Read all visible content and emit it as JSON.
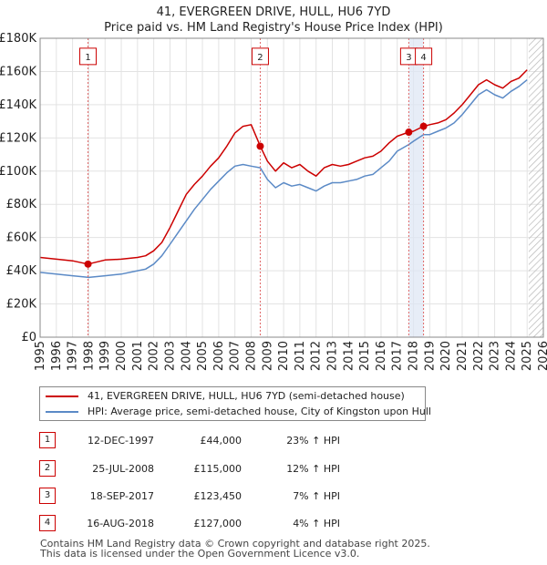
{
  "chart_data": {
    "type": "line",
    "title": "41, EVERGREEN DRIVE, HULL, HU6 7YD",
    "subtitle": "Price paid vs. HM Land Registry's House Price Index (HPI)",
    "xlabel": "",
    "ylabel": "",
    "xlim": [
      1995,
      2026
    ],
    "ylim": [
      0,
      180000
    ],
    "x_ticks": [
      "1995",
      "1996",
      "1997",
      "1998",
      "1999",
      "2000",
      "2001",
      "2002",
      "2003",
      "2004",
      "2005",
      "2006",
      "2007",
      "2008",
      "2009",
      "2010",
      "2011",
      "2012",
      "2013",
      "2014",
      "2015",
      "2016",
      "2017",
      "2018",
      "2019",
      "2020",
      "2021",
      "2022",
      "2023",
      "2024",
      "2025",
      "2026"
    ],
    "y_ticks": [
      {
        "value": 0,
        "label": "£0"
      },
      {
        "value": 20000,
        "label": "£20K"
      },
      {
        "value": 40000,
        "label": "£40K"
      },
      {
        "value": 60000,
        "label": "£60K"
      },
      {
        "value": 80000,
        "label": "£80K"
      },
      {
        "value": 100000,
        "label": "£100K"
      },
      {
        "value": 120000,
        "label": "£120K"
      },
      {
        "value": 140000,
        "label": "£140K"
      },
      {
        "value": 160000,
        "label": "£160K"
      },
      {
        "value": 180000,
        "label": "£180K"
      }
    ],
    "grid": true,
    "forecast_start": 2025.1,
    "series": [
      {
        "name": "41, EVERGREEN DRIVE, HULL, HU6 7YD (semi-detached house)",
        "color": "#cc0000",
        "x": [
          1995.0,
          1996.0,
          1997.0,
          1997.95,
          1999.0,
          2000.0,
          2001.0,
          2001.5,
          2002.0,
          2002.5,
          2003.0,
          2003.5,
          2004.0,
          2004.5,
          2005.0,
          2005.5,
          2006.0,
          2006.5,
          2007.0,
          2007.5,
          2008.0,
          2008.56,
          2009.0,
          2009.5,
          2010.0,
          2010.5,
          2011.0,
          2011.5,
          2012.0,
          2012.5,
          2013.0,
          2013.5,
          2014.0,
          2014.5,
          2015.0,
          2015.5,
          2016.0,
          2016.5,
          2017.0,
          2017.71,
          2018.0,
          2018.62,
          2019.0,
          2019.5,
          2020.0,
          2020.5,
          2021.0,
          2021.5,
          2022.0,
          2022.5,
          2023.0,
          2023.5,
          2024.0,
          2024.5,
          2025.0
        ],
        "y": [
          48000,
          47000,
          46000,
          44000,
          46500,
          47000,
          48000,
          49000,
          52000,
          57000,
          66000,
          76000,
          86000,
          92000,
          97000,
          103000,
          108000,
          115000,
          123000,
          127000,
          128000,
          115000,
          106000,
          100000,
          105000,
          102000,
          104000,
          100000,
          97000,
          102000,
          104000,
          103000,
          104000,
          106000,
          108000,
          109000,
          112000,
          117000,
          121000,
          123450,
          124000,
          127000,
          128000,
          129000,
          131000,
          135000,
          140000,
          146000,
          152000,
          155000,
          152000,
          150000,
          154000,
          156000,
          161000
        ]
      },
      {
        "name": "HPI: Average price, semi-detached house, City of Kingston upon Hull",
        "color": "#5b8ac6",
        "x": [
          1995.0,
          1996.0,
          1997.0,
          1998.0,
          1999.0,
          2000.0,
          2001.0,
          2001.5,
          2002.0,
          2002.5,
          2003.0,
          2003.5,
          2004.0,
          2004.5,
          2005.0,
          2005.5,
          2006.0,
          2006.5,
          2007.0,
          2007.5,
          2008.0,
          2008.56,
          2009.0,
          2009.5,
          2010.0,
          2010.5,
          2011.0,
          2011.5,
          2012.0,
          2012.5,
          2013.0,
          2013.5,
          2014.0,
          2014.5,
          2015.0,
          2015.5,
          2016.0,
          2016.5,
          2017.0,
          2017.71,
          2018.0,
          2018.62,
          2019.0,
          2019.5,
          2020.0,
          2020.5,
          2021.0,
          2021.5,
          2022.0,
          2022.5,
          2023.0,
          2023.5,
          2024.0,
          2024.5,
          2025.0
        ],
        "y": [
          39000,
          38000,
          37000,
          36000,
          37000,
          38000,
          40000,
          41000,
          44000,
          49000,
          56000,
          63000,
          70000,
          77000,
          83000,
          89000,
          94000,
          99000,
          103000,
          104000,
          103000,
          102000,
          95000,
          90000,
          93000,
          91000,
          92000,
          90000,
          88000,
          91000,
          93000,
          93000,
          94000,
          95000,
          97000,
          98000,
          102000,
          106000,
          112000,
          116000,
          118000,
          122000,
          122000,
          124000,
          126000,
          129000,
          134000,
          140000,
          146000,
          149000,
          146000,
          144000,
          148000,
          151000,
          155000
        ]
      }
    ],
    "markers": [
      {
        "label": "1",
        "x": 1997.95,
        "y": 44000,
        "label_y": 168000
      },
      {
        "label": "2",
        "x": 2008.56,
        "y": 115000,
        "label_y": 168000
      },
      {
        "label": "3",
        "x": 2017.71,
        "y": 123450,
        "label_y": 168000
      },
      {
        "label": "4",
        "x": 2018.62,
        "y": 127000,
        "label_y": 168000
      }
    ],
    "shaded_span": [
      2017.71,
      2018.62
    ]
  },
  "legend": {
    "property": "41, EVERGREEN DRIVE, HULL, HU6 7YD (semi-detached house)",
    "hpi": "HPI: Average price, semi-detached house, City of Kingston upon Hull"
  },
  "transactions": [
    {
      "num": "1",
      "date": "12-DEC-1997",
      "price": "£44,000",
      "hpi": "23% ↑ HPI"
    },
    {
      "num": "2",
      "date": "25-JUL-2008",
      "price": "£115,000",
      "hpi": "12% ↑ HPI"
    },
    {
      "num": "3",
      "date": "18-SEP-2017",
      "price": "£123,450",
      "hpi": "7% ↑ HPI"
    },
    {
      "num": "4",
      "date": "16-AUG-2018",
      "price": "£127,000",
      "hpi": "4% ↑ HPI"
    }
  ],
  "footer": {
    "line1": "Contains HM Land Registry data © Crown copyright and database right 2025.",
    "line2": "This data is licensed under the Open Government Licence v3.0."
  }
}
